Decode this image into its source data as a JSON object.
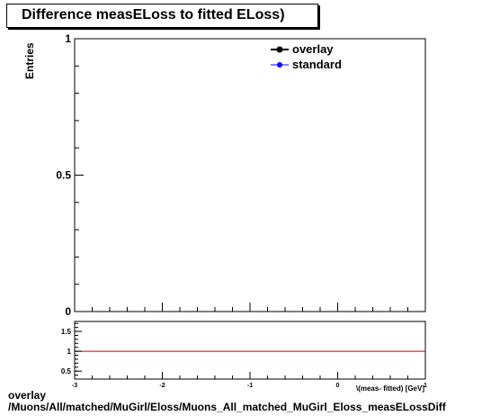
{
  "chart_data": [
    {
      "type": "line",
      "title": "Difference measELoss to fitted ELoss)",
      "ylabel": "Entries",
      "xlim": [
        -3,
        1
      ],
      "ylim": [
        0,
        1
      ],
      "yticks": [
        "0",
        "0.5",
        "1"
      ],
      "series": [
        {
          "name": "overlay",
          "color": "#000000",
          "x": [],
          "y": []
        },
        {
          "name": "standard",
          "color": "#0000ff",
          "x": [],
          "y": []
        }
      ],
      "legend_position": "top-right"
    },
    {
      "type": "line",
      "xlabel": "\\(meas- fitted) [GeV]",
      "xlim": [
        -3,
        1
      ],
      "ylim": [
        0.3,
        1.75
      ],
      "xticks": [
        "-3",
        "-2",
        "-1",
        "0",
        "1"
      ],
      "yticks": [
        "0.5",
        "1",
        "1.5"
      ],
      "reference_line": {
        "y": 1,
        "color": "#cc0000"
      }
    }
  ],
  "caption": {
    "line1": "overlay",
    "line2": "/Muons/All/matched/MuGirl/Eloss/Muons_All_matched_MuGirl_Eloss_measELossDiff"
  }
}
